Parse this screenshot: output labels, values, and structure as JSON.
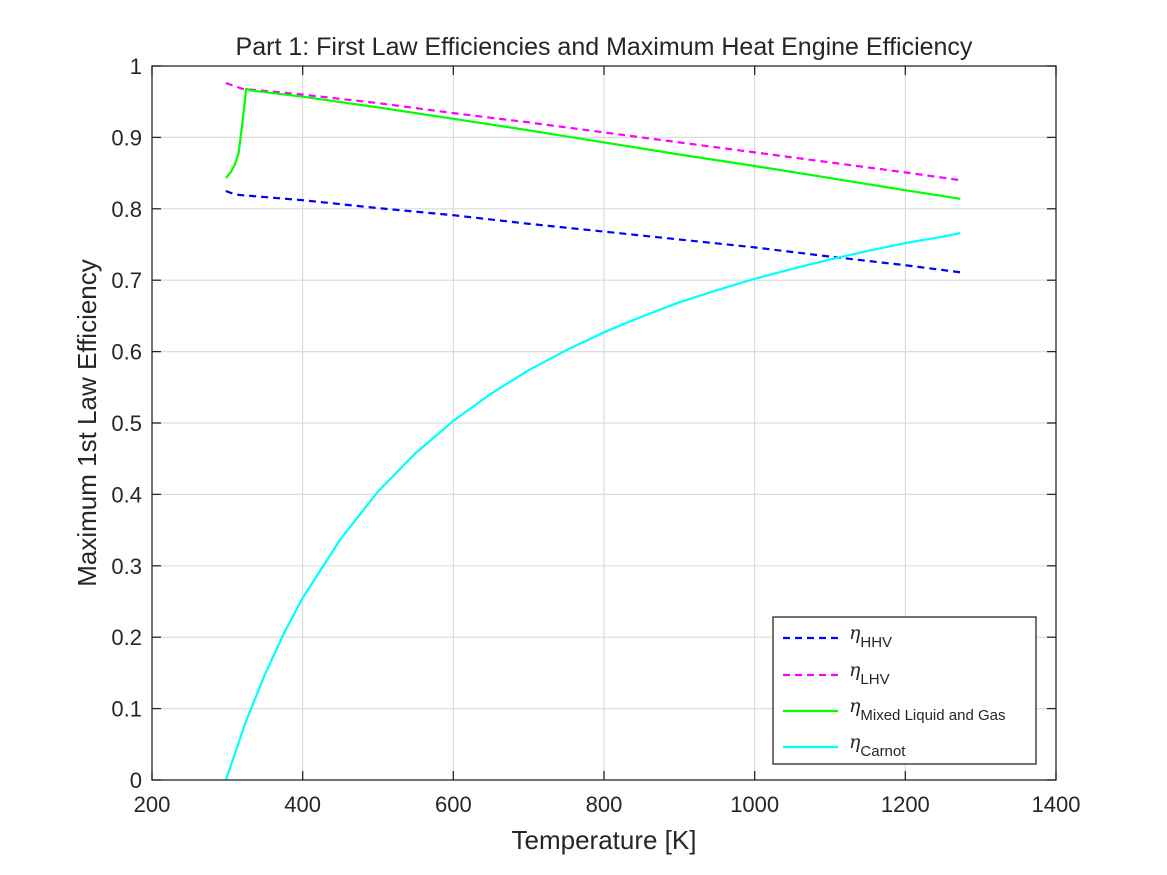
{
  "chart_data": {
    "type": "line",
    "title": "Part 1: First Law Efficiencies and Maximum Heat Engine Efficiency",
    "xlabel": "Temperature [K]",
    "ylabel": "Maximum 1st Law Efficiency",
    "xlim": [
      200,
      1400
    ],
    "ylim": [
      0,
      1
    ],
    "xticks": [
      200,
      400,
      600,
      800,
      1000,
      1200,
      1400
    ],
    "yticks": [
      0,
      0.1,
      0.2,
      0.3,
      0.4,
      0.5,
      0.6,
      0.7,
      0.8,
      0.9,
      1
    ],
    "grid": true,
    "legend_location": "bottom-right",
    "series": [
      {
        "name": "HHV",
        "color": "#0000ff",
        "style": "dashed",
        "x": [
          298.15,
          310,
          320,
          400,
          500,
          600,
          700,
          800,
          900,
          1000,
          1100,
          1200,
          1273
        ],
        "y": [
          0.825,
          0.82,
          0.819,
          0.812,
          0.801,
          0.791,
          0.779,
          0.768,
          0.757,
          0.746,
          0.733,
          0.721,
          0.711
        ]
      },
      {
        "name": "LHV",
        "color": "#ff00ff",
        "style": "dashed",
        "x": [
          298.15,
          320,
          400,
          500,
          600,
          700,
          800,
          900,
          1000,
          1100,
          1200,
          1273
        ],
        "y": [
          0.976,
          0.968,
          0.96,
          0.948,
          0.934,
          0.921,
          0.907,
          0.893,
          0.879,
          0.865,
          0.851,
          0.84
        ]
      },
      {
        "name": "Mixed Liquid and Gas",
        "color": "#00ff00",
        "style": "solid",
        "x": [
          298.15,
          305,
          310,
          315,
          320,
          325,
          330,
          400,
          500,
          600,
          700,
          800,
          900,
          1000,
          1100,
          1200,
          1273
        ],
        "y": [
          0.843,
          0.852,
          0.862,
          0.878,
          0.92,
          0.968,
          0.966,
          0.957,
          0.942,
          0.926,
          0.91,
          0.893,
          0.876,
          0.86,
          0.843,
          0.826,
          0.814
        ]
      },
      {
        "name": "Carnot",
        "color": "#00ffff",
        "style": "solid",
        "x": [
          298.15,
          325,
          350,
          375,
          400,
          450,
          500,
          550,
          600,
          650,
          700,
          750,
          800,
          850,
          900,
          950,
          1000,
          1050,
          1100,
          1150,
          1200,
          1250,
          1273
        ],
        "y": [
          0,
          0.083,
          0.148,
          0.205,
          0.255,
          0.337,
          0.404,
          0.458,
          0.503,
          0.541,
          0.574,
          0.602,
          0.627,
          0.649,
          0.669,
          0.686,
          0.702,
          0.716,
          0.729,
          0.741,
          0.752,
          0.761,
          0.766
        ]
      }
    ],
    "legend": [
      {
        "symbol": "η",
        "sub": "HHV"
      },
      {
        "symbol": "η",
        "sub": "LHV"
      },
      {
        "symbol": "η",
        "sub": "Mixed Liquid and Gas"
      },
      {
        "symbol": "η",
        "sub": "Carnot"
      }
    ]
  }
}
